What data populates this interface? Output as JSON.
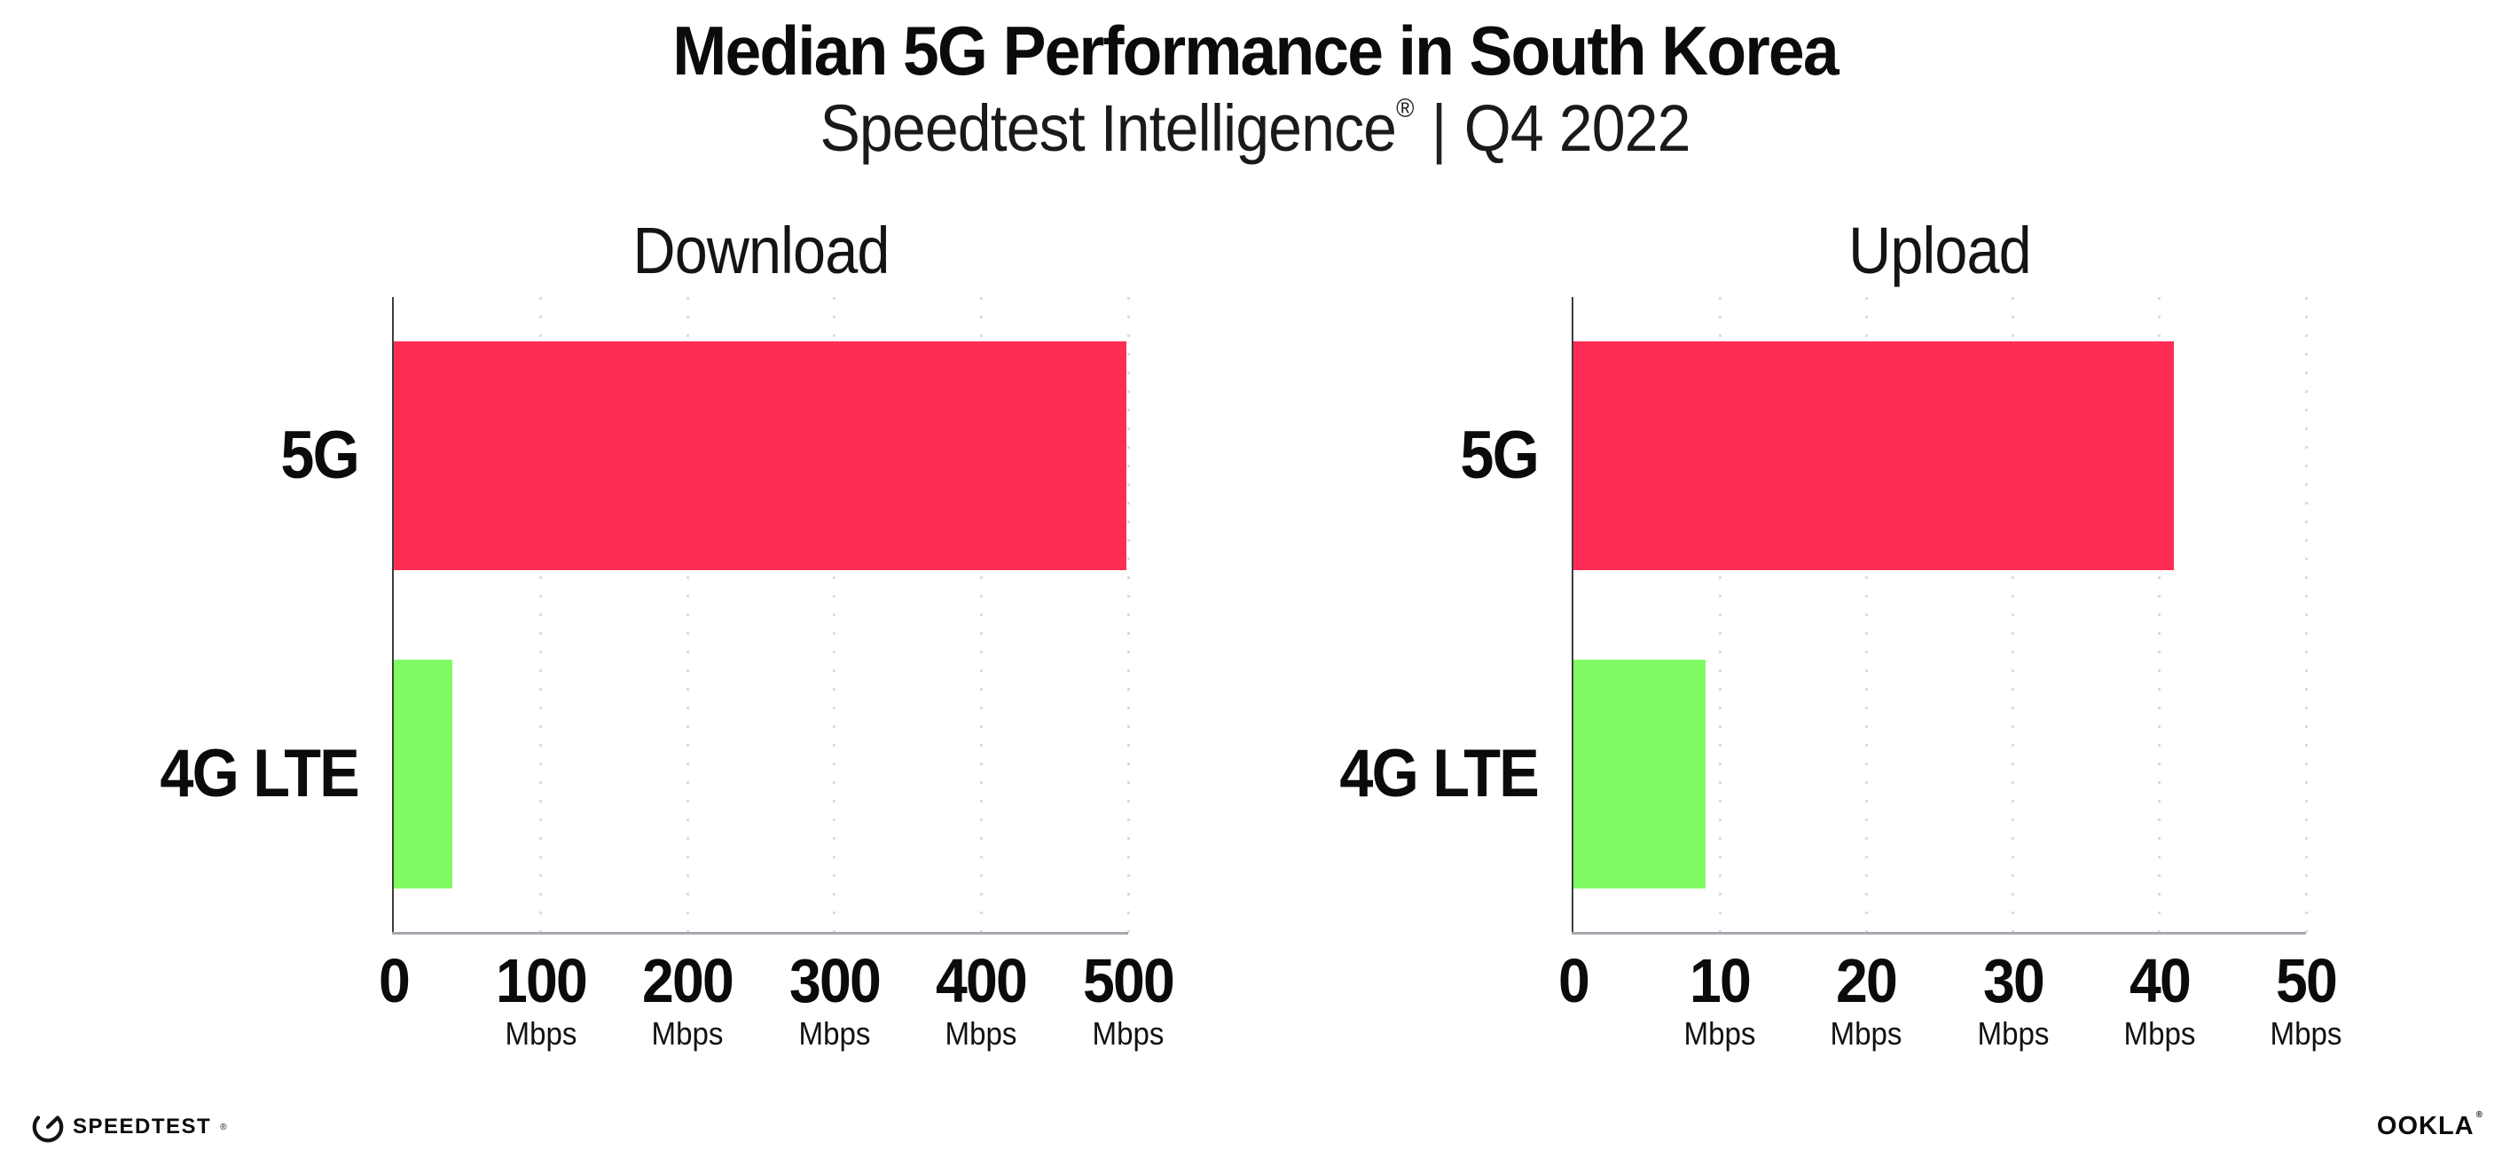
{
  "header": {
    "title": "Median 5G Performance in South Korea",
    "subtitle": {
      "brand": "Speedtest Intelligence",
      "reg": "®",
      "divider": "|",
      "period": "Q4 2022"
    }
  },
  "chart_data": {
    "type": "bar",
    "orientation": "horizontal",
    "categories": [
      "5G",
      "4G LTE"
    ],
    "panels": [
      {
        "title": "Download",
        "unit": "Mbps",
        "xlim": [
          0,
          500
        ],
        "xticks": [
          0,
          100,
          200,
          300,
          400,
          500
        ],
        "values": [
          499,
          40
        ]
      },
      {
        "title": "Upload",
        "unit": "Mbps",
        "xlim": [
          0,
          50
        ],
        "xticks": [
          0,
          10,
          20,
          30,
          40,
          50
        ],
        "values": [
          41,
          9
        ]
      }
    ],
    "series_colors": {
      "5G": "#ff2d55",
      "4G LTE": "#80fa62"
    },
    "grid": "dotted-vertical",
    "legend": "none"
  },
  "footer": {
    "speedtest": {
      "label": "SPEEDTEST",
      "mark": "®"
    },
    "ookla": {
      "label": "OOKLA",
      "mark": "®"
    }
  },
  "colors": {
    "bar_5g": "#ff2d55",
    "bar_4g_lte": "#80fa62",
    "axis_line": "#3d3d3d",
    "baseline": "#a7a8af",
    "grid_dot": "#d9dbe6",
    "text": "#0b0b0b"
  }
}
